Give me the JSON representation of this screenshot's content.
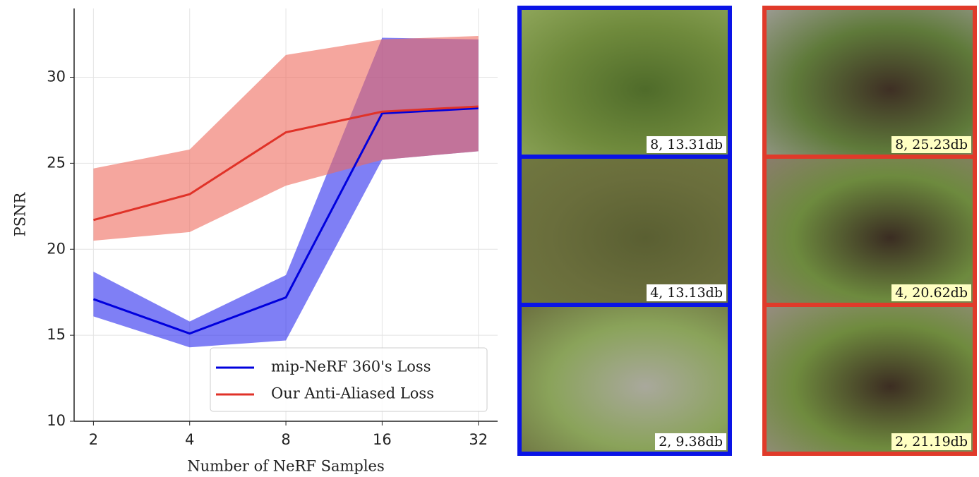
{
  "chart_data": {
    "type": "band-line",
    "x_label": "Number of NeRF Samples",
    "y_label": "PSNR",
    "x": [
      2,
      4,
      8,
      16,
      32
    ],
    "xlim": [
      1.74,
      36.76
    ],
    "xticks": [
      2,
      4,
      8,
      16,
      32
    ],
    "log_x": true,
    "log_base": 2,
    "ylim": [
      10,
      34
    ],
    "yticks": [
      10,
      15,
      20,
      25,
      30
    ],
    "grid": true,
    "legend": "lower right",
    "series": [
      {
        "name": "mip-NeRF 360's Loss",
        "color": "#0000dd",
        "band_color": "#2a2aee",
        "values": [
          17.1,
          15.1,
          17.2,
          27.9,
          28.2
        ],
        "lower": [
          16.1,
          14.3,
          14.7,
          25.2,
          25.7
        ],
        "upper": [
          18.7,
          15.8,
          18.5,
          32.3,
          32.2
        ]
      },
      {
        "name": "Our Anti-Aliased Loss",
        "color": "#e03228",
        "band_color": "#ee6a5e",
        "values": [
          21.7,
          23.2,
          26.8,
          28.0,
          28.3
        ],
        "lower": [
          20.5,
          21.0,
          23.7,
          25.2,
          25.7
        ],
        "upper": [
          24.7,
          25.8,
          31.3,
          32.2,
          32.4
        ]
      }
    ]
  },
  "panels": [
    {
      "color": "#0a14e6",
      "label_bg": "#ffffff",
      "labels": [
        "8, 13.31db",
        "4, 13.13db",
        "2, 9.38db"
      ]
    },
    {
      "color": "#e03a2a",
      "label_bg": "#ffffc2",
      "labels": [
        "8, 25.23db",
        "4, 20.62db",
        "2, 21.19db"
      ]
    }
  ]
}
